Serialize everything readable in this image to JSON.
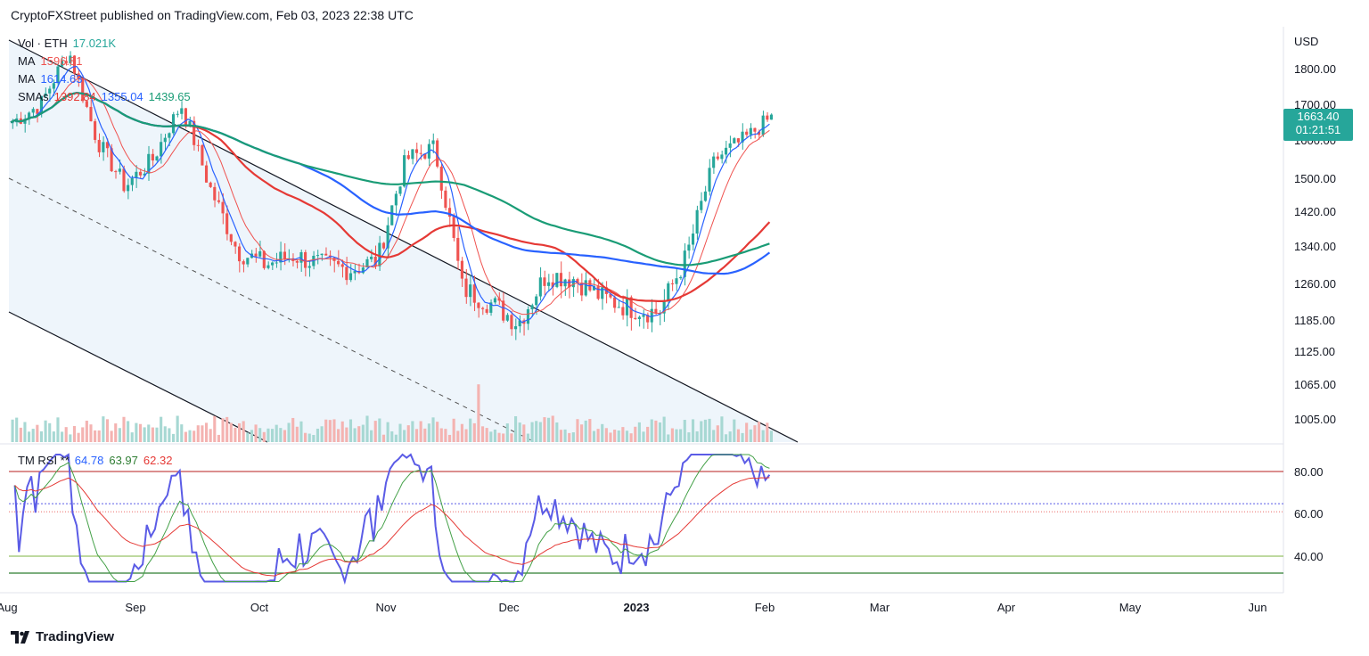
{
  "header": {
    "text": "CryptoFXStreet published on TradingView.com, Feb 03, 2023 22:38 UTC"
  },
  "legend": {
    "vol": {
      "label": "Vol · ETH",
      "value": "17.021K"
    },
    "ma1": {
      "label": "MA",
      "value": "1596.81"
    },
    "ma2": {
      "label": "MA",
      "value": "1614.63"
    },
    "smas": {
      "label": "SMAs",
      "v1": "1392.84",
      "v2": "1355.04",
      "v3": "1439.65"
    }
  },
  "rsi_legend": {
    "label": "TM RSI **",
    "v1": "64.78",
    "v2": "63.97",
    "v3": "62.32"
  },
  "price_axis": {
    "currency": "USD",
    "ticks": [
      "1800.00",
      "1700.00",
      "1600.00",
      "1500.00",
      "1420.00",
      "1340.00",
      "1260.00",
      "1185.00",
      "1125.00",
      "1065.00",
      "1005.00"
    ]
  },
  "rsi_axis": {
    "ticks": [
      "80.00",
      "60.00",
      "40.00"
    ]
  },
  "time_axis": {
    "ticks": [
      "Aug",
      "Sep",
      "Oct",
      "Nov",
      "Dec",
      "2023",
      "Feb",
      "Mar",
      "Apr",
      "May",
      "Jun"
    ]
  },
  "last_price": {
    "price": "1663.40",
    "countdown": "01:21:51"
  },
  "footer": {
    "brand": "TradingView"
  },
  "colors": {
    "up": "#26a69a",
    "down": "#ef5350",
    "sma_green": "#1a9c76",
    "sma_blue": "#2962ff",
    "sma_red": "#e53935",
    "rsi_blue": "#5b5ce6",
    "channel_fill": "#eef5fb"
  },
  "chart_data": {
    "type": "candlestick",
    "symbol": "ETH",
    "currency": "USD",
    "price_range": [
      950,
      1860
    ],
    "ohlc_weekly_approx": [
      {
        "x": "Aug",
        "close": 1650
      },
      {
        "x": "Aug",
        "close": 1700
      },
      {
        "x": "Aug mid",
        "close": 1850
      },
      {
        "x": "Aug",
        "close": 1600
      },
      {
        "x": "Aug end",
        "close": 1480
      },
      {
        "x": "Sep",
        "close": 1550
      },
      {
        "x": "Sep",
        "close": 1700
      },
      {
        "x": "Sep mid",
        "close": 1480
      },
      {
        "x": "Sep",
        "close": 1330
      },
      {
        "x": "Sep end",
        "close": 1300
      },
      {
        "x": "Oct",
        "close": 1320
      },
      {
        "x": "Oct",
        "close": 1300
      },
      {
        "x": "Oct mid",
        "close": 1290
      },
      {
        "x": "Oct",
        "close": 1310
      },
      {
        "x": "Oct end",
        "close": 1550
      },
      {
        "x": "Nov",
        "close": 1580
      },
      {
        "x": "Nov",
        "close": 1250
      },
      {
        "x": "Nov mid",
        "close": 1220
      },
      {
        "x": "Nov",
        "close": 1180
      },
      {
        "x": "Dec",
        "close": 1280
      },
      {
        "x": "Dec",
        "close": 1270
      },
      {
        "x": "Dec mid",
        "close": 1230
      },
      {
        "x": "Dec",
        "close": 1210
      },
      {
        "x": "2023",
        "close": 1200
      },
      {
        "x": "Jan",
        "close": 1320
      },
      {
        "x": "Jan mid",
        "close": 1550
      },
      {
        "x": "Jan",
        "close": 1600
      },
      {
        "x": "Feb",
        "close": 1663.4
      }
    ],
    "sma_series": [
      {
        "name": "SMA green",
        "last": 1439.65
      },
      {
        "name": "SMA red",
        "last": 1392.84
      },
      {
        "name": "SMA blue",
        "last": 1355.04
      }
    ],
    "rsi": {
      "last_values": [
        64.78,
        63.97,
        62.32
      ],
      "levels": [
        80,
        60,
        40
      ]
    },
    "x_range": [
      "Aug",
      "Jun"
    ]
  }
}
